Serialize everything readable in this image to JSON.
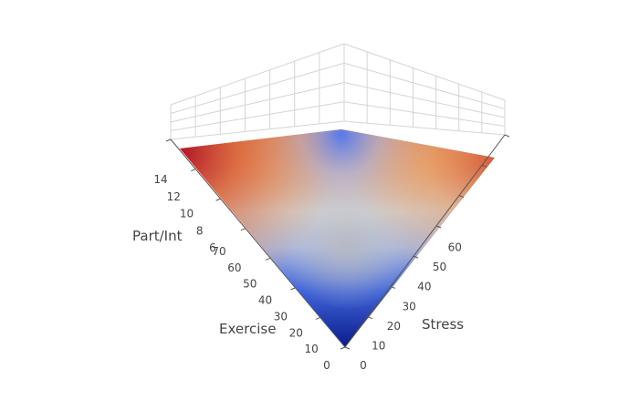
{
  "chart_data": {
    "type": "surface",
    "title": "",
    "x_axis": {
      "label": "Exercise",
      "ticks": [
        0,
        10,
        20,
        30,
        40,
        50,
        60,
        70
      ],
      "range": [
        0,
        70
      ]
    },
    "y_axis": {
      "label": "Stress",
      "ticks": [
        0,
        10,
        20,
        30,
        40,
        50,
        60
      ],
      "range": [
        0,
        70
      ]
    },
    "z_axis": {
      "label": "Part/Int",
      "ticks": [
        6,
        8,
        10,
        12,
        14
      ],
      "range": [
        4,
        15.5
      ]
    },
    "surface": {
      "corners": [
        {
          "exercise": 0,
          "stress": 0,
          "part_int": 4
        },
        {
          "exercise": 70,
          "stress": 0,
          "part_int": 15
        },
        {
          "exercise": 0,
          "stress": 70,
          "part_int": 14.5
        },
        {
          "exercise": 70,
          "stress": 70,
          "part_int": 6
        }
      ],
      "colorscale": [
        "#0b1c8c",
        "#3f63d8",
        "#9aaee0",
        "#d0d0d0",
        "#e79a63",
        "#d96a3a",
        "#b2182b"
      ]
    },
    "grid": true,
    "legend": "none"
  }
}
